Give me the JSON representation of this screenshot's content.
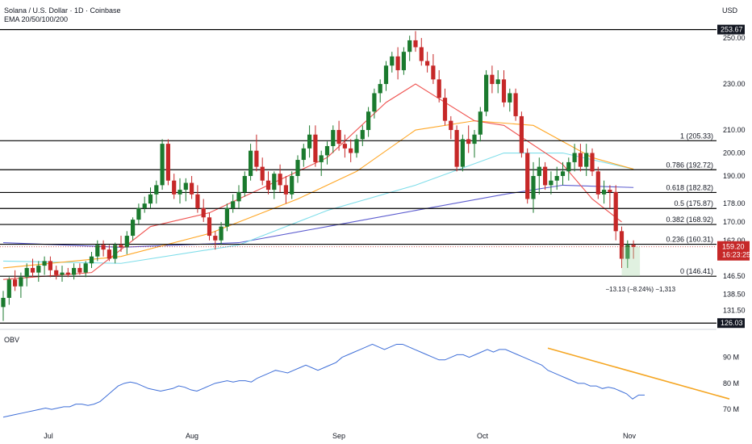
{
  "header": {
    "title": "Solana / U.S. Dollar · 1D · Coinbase",
    "indicator": "EMA 20/50/100/200",
    "currency": "USD"
  },
  "colors": {
    "up": "#26a69a",
    "up_body": "#1b7a2e",
    "down": "#c62828",
    "ema20": "#ef5350",
    "ema50": "#ffa726",
    "ema100": "#80deea",
    "ema200": "#5c5ccf",
    "obv": "#3f6fd8",
    "trend": "#f5a623",
    "fib": "#000000"
  },
  "obv_label": "OBV",
  "price_badge": {
    "price": "159.20",
    "countdown": "16:23:25"
  },
  "measure_label": "−13.13 (−8.24%) −1,313",
  "chart_data": [
    {
      "type": "candlestick",
      "x_ticks": [
        "Jul",
        "Aug",
        "Sep",
        "Oct",
        "Nov"
      ],
      "y_ticks": [
        "250.00",
        "230.00",
        "210.00",
        "200.00",
        "190.00",
        "178.00",
        "170.00",
        "162.00",
        "146.50",
        "138.50",
        "131.50"
      ],
      "ylim": [
        124,
        256
      ],
      "boxed_levels": [
        "253.67",
        "126.03"
      ],
      "fib_levels": [
        {
          "label": "1 (205.33)",
          "value": 205.33
        },
        {
          "label": "0.786 (192.72)",
          "value": 192.72
        },
        {
          "label": "0.618 (182.82)",
          "value": 182.82
        },
        {
          "label": "0.5 (175.87)",
          "value": 175.87
        },
        {
          "label": "0.382 (168.92)",
          "value": 168.92
        },
        {
          "label": "0.236 (160.31)",
          "value": 160.31
        },
        {
          "label": "0 (146.41)",
          "value": 146.41
        }
      ],
      "ohlc": [
        [
          133,
          140,
          127,
          137
        ],
        [
          137,
          146,
          134,
          145
        ],
        [
          145,
          149,
          140,
          142
        ],
        [
          142,
          148,
          137,
          146
        ],
        [
          146,
          152,
          142,
          150
        ],
        [
          150,
          154,
          146,
          148
        ],
        [
          148,
          153,
          144,
          151
        ],
        [
          151,
          155,
          147,
          153
        ],
        [
          153,
          155,
          146,
          149
        ],
        [
          149,
          151,
          145,
          147
        ],
        [
          147,
          151,
          144,
          148
        ],
        [
          148,
          150,
          146,
          147
        ],
        [
          147,
          152,
          145,
          150
        ],
        [
          150,
          152,
          147,
          148
        ],
        [
          148,
          153,
          146,
          152
        ],
        [
          152,
          157,
          150,
          155
        ],
        [
          155,
          162,
          153,
          160
        ],
        [
          160,
          162,
          155,
          158
        ],
        [
          158,
          160,
          153,
          154
        ],
        [
          154,
          161,
          152,
          160
        ],
        [
          160,
          164,
          157,
          159
        ],
        [
          159,
          166,
          156,
          164
        ],
        [
          164,
          172,
          162,
          171
        ],
        [
          171,
          178,
          169,
          176
        ],
        [
          176,
          181,
          174,
          178
        ],
        [
          178,
          185,
          176,
          182
        ],
        [
          182,
          188,
          178,
          186
        ],
        [
          186,
          206,
          184,
          204
        ],
        [
          204,
          206,
          186,
          188
        ],
        [
          188,
          191,
          180,
          182
        ],
        [
          182,
          189,
          178,
          184
        ],
        [
          184,
          189,
          179,
          187
        ],
        [
          187,
          190,
          180,
          182
        ],
        [
          182,
          186,
          174,
          176
        ],
        [
          176,
          180,
          170,
          172
        ],
        [
          172,
          174,
          162,
          164
        ],
        [
          164,
          166,
          158,
          162
        ],
        [
          162,
          170,
          160,
          168
        ],
        [
          168,
          178,
          166,
          176
        ],
        [
          176,
          182,
          174,
          179
        ],
        [
          179,
          186,
          176,
          183
        ],
        [
          183,
          192,
          181,
          190
        ],
        [
          190,
          204,
          188,
          201
        ],
        [
          201,
          208,
          192,
          194
        ],
        [
          194,
          198,
          186,
          188
        ],
        [
          188,
          192,
          182,
          184
        ],
        [
          184,
          192,
          180,
          191
        ],
        [
          191,
          195,
          183,
          186
        ],
        [
          186,
          190,
          178,
          182
        ],
        [
          182,
          192,
          180,
          190
        ],
        [
          190,
          199,
          187,
          197
        ],
        [
          197,
          204,
          194,
          202
        ],
        [
          202,
          212,
          198,
          208
        ],
        [
          208,
          212,
          194,
          196
        ],
        [
          196,
          201,
          190,
          199
        ],
        [
          199,
          205,
          195,
          203
        ],
        [
          203,
          212,
          200,
          210
        ],
        [
          210,
          214,
          201,
          204
        ],
        [
          204,
          208,
          198,
          202
        ],
        [
          202,
          206,
          196,
          200
        ],
        [
          200,
          208,
          198,
          206
        ],
        [
          206,
          212,
          203,
          210
        ],
        [
          210,
          220,
          207,
          218
        ],
        [
          218,
          228,
          215,
          226
        ],
        [
          226,
          232,
          222,
          230
        ],
        [
          230,
          240,
          227,
          238
        ],
        [
          238,
          244,
          235,
          242
        ],
        [
          242,
          246,
          232,
          236
        ],
        [
          236,
          246,
          234,
          244
        ],
        [
          244,
          251,
          240,
          249
        ],
        [
          249,
          253,
          244,
          246
        ],
        [
          246,
          250,
          238,
          240
        ],
        [
          240,
          244,
          235,
          238
        ],
        [
          238,
          243,
          230,
          232
        ],
        [
          232,
          236,
          222,
          224
        ],
        [
          224,
          228,
          212,
          214
        ],
        [
          214,
          216,
          206,
          210
        ],
        [
          210,
          212,
          192,
          194
        ],
        [
          194,
          208,
          192,
          206
        ],
        [
          206,
          212,
          200,
          204
        ],
        [
          204,
          210,
          198,
          208
        ],
        [
          208,
          220,
          205,
          218
        ],
        [
          218,
          236,
          216,
          234
        ],
        [
          234,
          238,
          226,
          230
        ],
        [
          230,
          236,
          226,
          232
        ],
        [
          232,
          236,
          220,
          222
        ],
        [
          222,
          228,
          218,
          226
        ],
        [
          226,
          228,
          214,
          216
        ],
        [
          216,
          218,
          198,
          200
        ],
        [
          200,
          202,
          178,
          180
        ],
        [
          180,
          196,
          174,
          190
        ],
        [
          190,
          198,
          182,
          194
        ],
        [
          194,
          196,
          184,
          186
        ],
        [
          186,
          192,
          182,
          188
        ],
        [
          188,
          194,
          184,
          190
        ],
        [
          190,
          196,
          186,
          192
        ],
        [
          192,
          198,
          188,
          196
        ],
        [
          196,
          204,
          192,
          200
        ],
        [
          200,
          204,
          192,
          194
        ],
        [
          194,
          204,
          190,
          200
        ],
        [
          200,
          202,
          190,
          192
        ],
        [
          192,
          194,
          180,
          182
        ],
        [
          182,
          188,
          178,
          184
        ],
        [
          184,
          186,
          176,
          183
        ],
        [
          183,
          186,
          162,
          166
        ],
        [
          166,
          168,
          150,
          154
        ],
        [
          154,
          162,
          150,
          160
        ],
        [
          160,
          162,
          154,
          159.2
        ]
      ],
      "ema20": [
        [
          0,
          145
        ],
        [
          15,
          148
        ],
        [
          25,
          168
        ],
        [
          35,
          174
        ],
        [
          45,
          186
        ],
        [
          55,
          198
        ],
        [
          65,
          222
        ],
        [
          70,
          230
        ],
        [
          80,
          214
        ],
        [
          85,
          212
        ],
        [
          95,
          195
        ],
        [
          100,
          180
        ],
        [
          105,
          170
        ]
      ],
      "ema50": [
        [
          0,
          150
        ],
        [
          20,
          155
        ],
        [
          35,
          165
        ],
        [
          50,
          180
        ],
        [
          60,
          192
        ],
        [
          70,
          210
        ],
        [
          80,
          214
        ],
        [
          90,
          212
        ],
        [
          100,
          198
        ],
        [
          107,
          193
        ]
      ],
      "ema100": [
        [
          0,
          153
        ],
        [
          20,
          152
        ],
        [
          40,
          160
        ],
        [
          55,
          175
        ],
        [
          70,
          186
        ],
        [
          85,
          200
        ],
        [
          95,
          200
        ],
        [
          107,
          193
        ]
      ],
      "ema200": [
        [
          0,
          161
        ],
        [
          20,
          159
        ],
        [
          40,
          161
        ],
        [
          55,
          168
        ],
        [
          70,
          175
        ],
        [
          85,
          182
        ],
        [
          95,
          186
        ],
        [
          107,
          185
        ]
      ]
    },
    {
      "type": "line",
      "name": "OBV",
      "y_ticks": [
        "90 M",
        "80 M",
        "70 M"
      ],
      "ylim": [
        66,
        97
      ],
      "values": [
        67,
        67.5,
        68,
        68.5,
        69,
        69.5,
        70,
        70.5,
        70,
        70.5,
        71,
        71,
        72,
        72,
        71.5,
        72,
        73,
        75,
        77,
        79,
        80,
        80.5,
        80,
        79,
        78,
        77.5,
        77,
        77.5,
        78,
        79,
        78.5,
        77.5,
        77,
        78,
        79,
        80,
        80.5,
        81,
        80.5,
        81,
        81,
        80.5,
        82,
        83,
        84,
        85,
        84.5,
        84,
        85,
        86,
        87,
        86,
        85,
        86,
        87,
        88,
        90,
        91,
        92,
        93,
        94,
        95,
        94,
        93,
        94,
        95,
        95,
        94,
        93,
        92,
        91,
        90,
        89,
        89,
        90,
        91,
        91,
        90,
        91,
        92,
        93,
        92,
        93,
        93,
        92,
        91,
        90,
        89,
        88,
        87,
        85,
        84,
        83,
        82,
        81,
        80,
        80,
        79,
        79,
        78,
        78.5,
        78,
        77,
        76,
        74,
        75.5,
        75.5
      ],
      "trendline": [
        [
          90,
          93.5
        ],
        [
          120,
          74
        ]
      ]
    }
  ]
}
